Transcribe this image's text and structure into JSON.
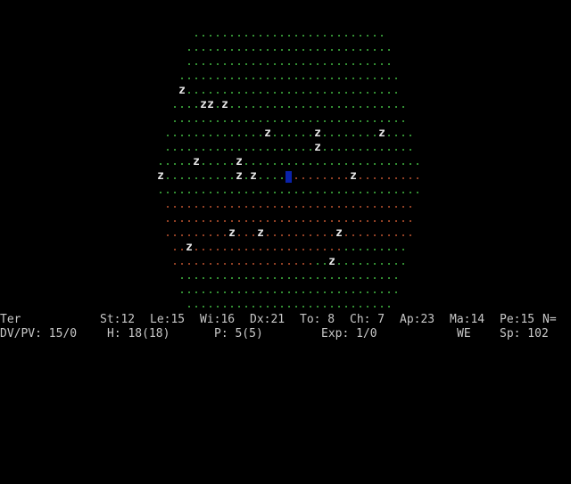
{
  "colors": {
    "background": "#000000",
    "floor_grass": "#3fae3f",
    "floor_dirt": "#b4502d",
    "monster": "#e8e8e8",
    "player": "#0a22aa",
    "status_text": "#c8c8c8"
  },
  "map": {
    "legend": {
      "grass_floor": ".",
      "dirt_floor": ".",
      "monster_z": "z",
      "player": "@"
    },
    "rows": [
      {
        "row": 2,
        "start": 27,
        "end": 53,
        "terrain": "grass"
      },
      {
        "row": 3,
        "start": 26,
        "end": 54,
        "terrain": "grass"
      },
      {
        "row": 4,
        "start": 26,
        "end": 54,
        "terrain": "grass"
      },
      {
        "row": 5,
        "start": 25,
        "end": 55,
        "terrain": "grass"
      },
      {
        "row": 6,
        "start": 25,
        "end": 55,
        "terrain": "grass"
      },
      {
        "row": 7,
        "start": 24,
        "end": 56,
        "terrain": "grass"
      },
      {
        "row": 8,
        "start": 24,
        "end": 56,
        "terrain": "grass"
      },
      {
        "row": 9,
        "start": 23,
        "end": 57,
        "terrain": "grass"
      },
      {
        "row": 10,
        "start": 23,
        "end": 57,
        "terrain": "grass"
      },
      {
        "row": 11,
        "start": 22,
        "end": 58,
        "terrain": "grass"
      },
      {
        "row": 12,
        "start": 22,
        "end": 58,
        "terrain": "grass",
        "dirt_from": 40
      },
      {
        "row": 13,
        "start": 22,
        "end": 58,
        "terrain": "grass"
      },
      {
        "row": 14,
        "start": 23,
        "end": 57,
        "terrain": "dirt"
      },
      {
        "row": 15,
        "start": 23,
        "end": 57,
        "terrain": "dirt"
      },
      {
        "row": 16,
        "start": 23,
        "end": 57,
        "terrain": "dirt"
      },
      {
        "row": 17,
        "start": 24,
        "end": 56,
        "terrain": "dirt",
        "grass_from": 48
      },
      {
        "row": 18,
        "start": 24,
        "end": 56,
        "terrain": "dirt",
        "grass_from": 44
      },
      {
        "row": 19,
        "start": 25,
        "end": 55,
        "terrain": "grass"
      },
      {
        "row": 20,
        "start": 25,
        "end": 55,
        "terrain": "grass"
      },
      {
        "row": 21,
        "start": 26,
        "end": 54,
        "terrain": "grass"
      }
    ],
    "monsters": [
      {
        "row": 6,
        "col": 25,
        "glyph": "z"
      },
      {
        "row": 7,
        "col": 28,
        "glyph": "z"
      },
      {
        "row": 7,
        "col": 29,
        "glyph": "z"
      },
      {
        "row": 7,
        "col": 31,
        "glyph": "z"
      },
      {
        "row": 9,
        "col": 37,
        "glyph": "z"
      },
      {
        "row": 9,
        "col": 44,
        "glyph": "z"
      },
      {
        "row": 9,
        "col": 53,
        "glyph": "z"
      },
      {
        "row": 10,
        "col": 44,
        "glyph": "z"
      },
      {
        "row": 11,
        "col": 27,
        "glyph": "z"
      },
      {
        "row": 11,
        "col": 33,
        "glyph": "z"
      },
      {
        "row": 12,
        "col": 22,
        "glyph": "z"
      },
      {
        "row": 12,
        "col": 33,
        "glyph": "z"
      },
      {
        "row": 12,
        "col": 35,
        "glyph": "z"
      },
      {
        "row": 12,
        "col": 49,
        "glyph": "z"
      },
      {
        "row": 16,
        "col": 32,
        "glyph": "z"
      },
      {
        "row": 16,
        "col": 36,
        "glyph": "z"
      },
      {
        "row": 16,
        "col": 47,
        "glyph": "z"
      },
      {
        "row": 17,
        "col": 26,
        "glyph": "z"
      },
      {
        "row": 18,
        "col": 46,
        "glyph": "z"
      }
    ],
    "player": {
      "row": 12,
      "col": 40
    }
  },
  "status": {
    "line1": {
      "name": "Ter",
      "st": "St:12",
      "le": "Le:15",
      "wi": "Wi:16",
      "dx": "Dx:21",
      "to": "To: 8",
      "ch": "Ch: 7",
      "ap": "Ap:23",
      "ma": "Ma:14",
      "pe": "Pe:15",
      "n": "N="
    },
    "line2": {
      "dvpv": "DV/PV: 15/0",
      "hp": "H: 18(18)",
      "pp": "P: 5(5)",
      "exp": "Exp: 1/0",
      "state": "WE",
      "speed": "Sp: 102"
    }
  }
}
